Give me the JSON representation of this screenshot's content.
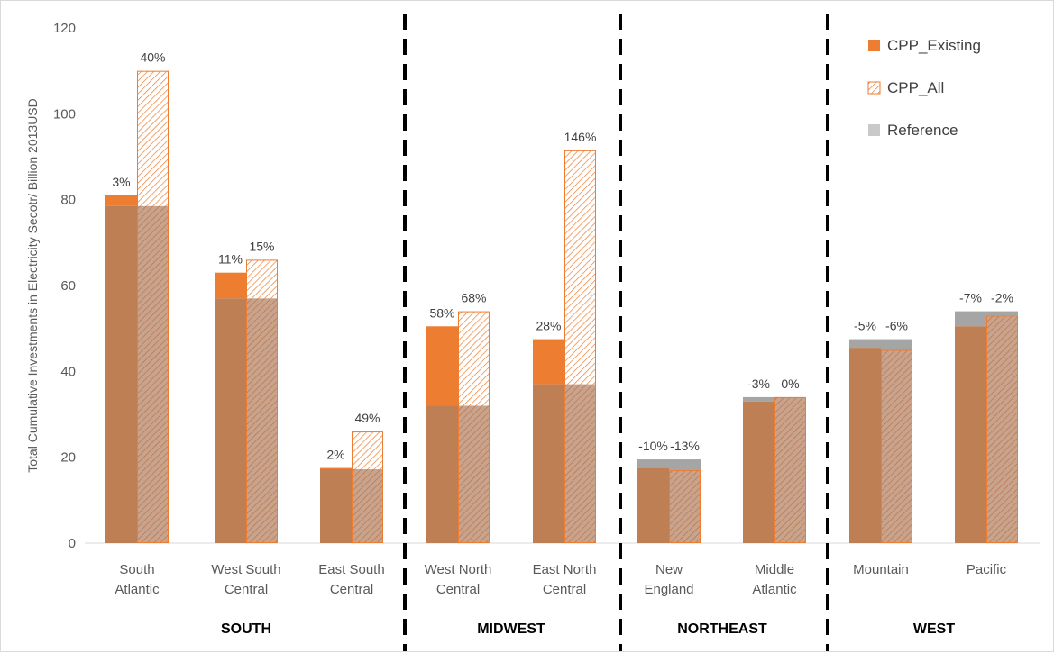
{
  "chart_data": {
    "type": "bar",
    "ylabel": "Total Cumulative Investments in Electricity Secotr/ Billion 2013USD",
    "ylim": [
      0,
      120
    ],
    "yticks": [
      0,
      20,
      40,
      60,
      80,
      100,
      120
    ],
    "grid": false,
    "legend_position": "top-right",
    "categories": [
      [
        "South",
        "Atlantic"
      ],
      [
        "West South",
        "Central"
      ],
      [
        "East South",
        "Central"
      ],
      [
        "West North",
        "Central"
      ],
      [
        "East North",
        "Central"
      ],
      [
        "New",
        "England"
      ],
      [
        "Middle",
        "Atlantic"
      ],
      [
        "Mountain"
      ],
      [
        "Pacific"
      ]
    ],
    "regions": [
      {
        "label": "SOUTH",
        "categories": [
          0,
          1,
          2
        ]
      },
      {
        "label": "MIDWEST",
        "categories": [
          3,
          4
        ]
      },
      {
        "label": "NORTHEAST",
        "categories": [
          5,
          6
        ]
      },
      {
        "label": "WEST",
        "categories": [
          7,
          8
        ]
      }
    ],
    "series": [
      {
        "name": "CPP_Existing",
        "values": [
          81,
          63,
          17.5,
          50.5,
          47.5,
          17.5,
          33,
          45.5,
          50.5
        ],
        "pct_labels": [
          "3%",
          "11%",
          "2%",
          "58%",
          "28%",
          "-10%",
          "-3%",
          "-5%",
          "-7%"
        ]
      },
      {
        "name": "CPP_All",
        "values": [
          110,
          66,
          26,
          54,
          91.5,
          17,
          34,
          45,
          53
        ],
        "pct_labels": [
          "40%",
          "15%",
          "49%",
          "68%",
          "146%",
          "-13%",
          "0%",
          "-6%",
          "-2%"
        ]
      },
      {
        "name": "Reference",
        "values": [
          78.5,
          57,
          17.2,
          32,
          37,
          19.5,
          34,
          47.5,
          54
        ]
      }
    ],
    "colors": {
      "cpp_existing": "#ED7D31",
      "cpp_all_hatch": "#ED7D31",
      "reference": "#A5A5A5",
      "overlap": "#BE7F55",
      "axis": "#d9d9d9",
      "divider": "#000000"
    }
  }
}
